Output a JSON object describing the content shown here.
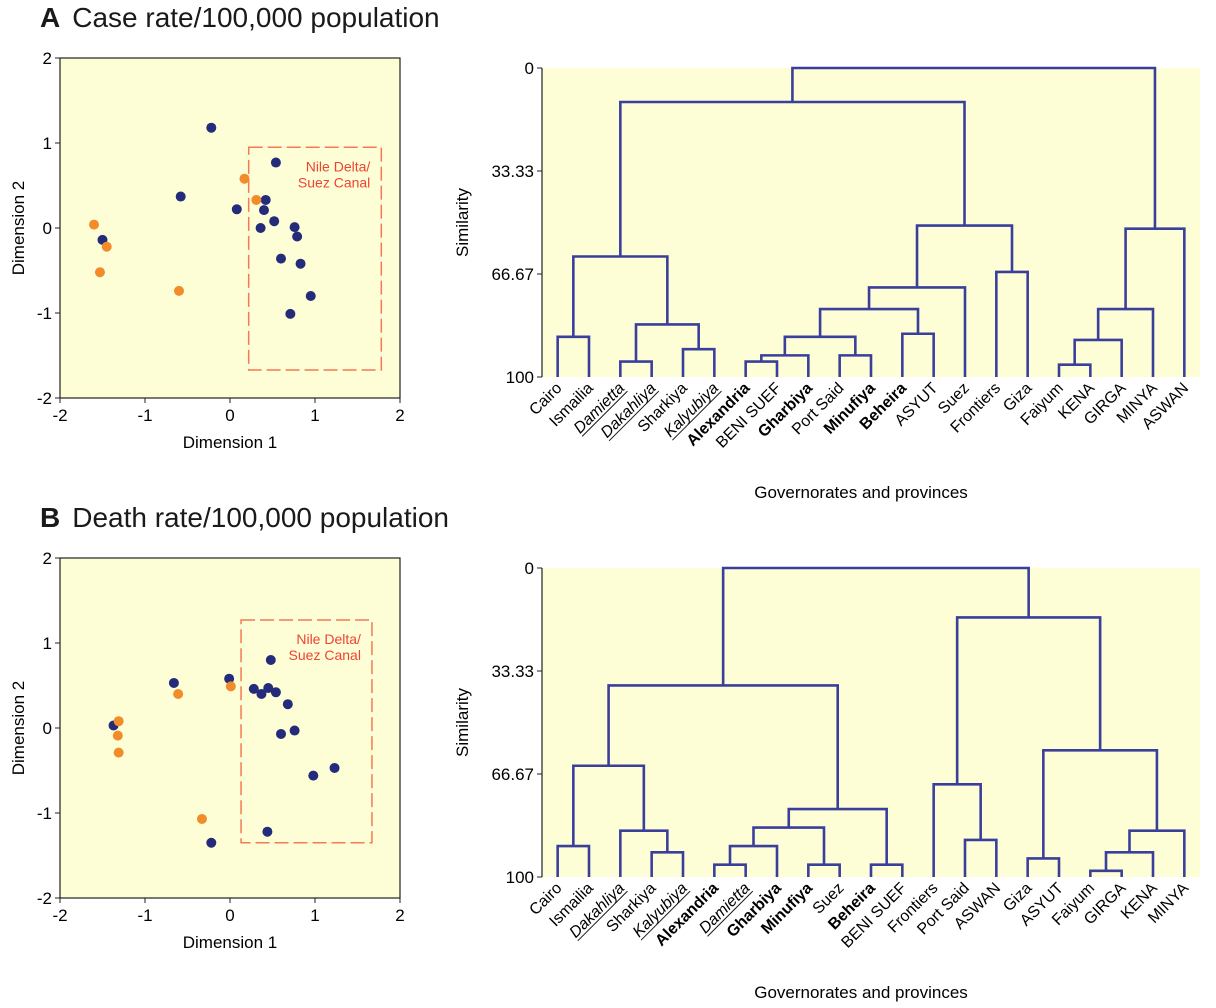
{
  "colors": {
    "plot_background": "#fdfdd6",
    "tree_line": "#3b3f9c",
    "dot_blue": "#232b7a",
    "dot_orange": "#f28c2b",
    "region_box": "#f47a55",
    "region_text": "#ee4433"
  },
  "panels": [
    {
      "letter": "A",
      "title": "Case rate/100,000 population"
    },
    {
      "letter": "B",
      "title": "Death rate/100,000 population"
    }
  ],
  "chart_data": [
    {
      "type": "scatter",
      "panel": "A",
      "xlabel": "Dimension 1",
      "ylabel": "Dimension 2",
      "xlim": [
        -2,
        2
      ],
      "ylim": [
        -2,
        2
      ],
      "xticks": [
        "-2",
        "-1",
        "0",
        "1",
        "2"
      ],
      "yticks": [
        "-2",
        "-1",
        "0",
        "1",
        "2"
      ],
      "region": {
        "label": [
          "Nile Delta/",
          "Suez Canal"
        ],
        "x": [
          0.22,
          1.78
        ],
        "y": [
          -1.67,
          0.95
        ]
      },
      "points": [
        {
          "x": -0.22,
          "y": 1.18,
          "group": "blue"
        },
        {
          "x": -0.58,
          "y": 0.37,
          "group": "blue"
        },
        {
          "x": 0.08,
          "y": 0.22,
          "group": "blue"
        },
        {
          "x": 0.54,
          "y": 0.77,
          "group": "blue"
        },
        {
          "x": 0.42,
          "y": 0.33,
          "group": "blue"
        },
        {
          "x": 0.4,
          "y": 0.21,
          "group": "blue"
        },
        {
          "x": 0.52,
          "y": 0.08,
          "group": "blue"
        },
        {
          "x": 0.36,
          "y": 0.0,
          "group": "blue"
        },
        {
          "x": 0.76,
          "y": 0.01,
          "group": "blue"
        },
        {
          "x": 0.79,
          "y": -0.1,
          "group": "blue"
        },
        {
          "x": 0.6,
          "y": -0.36,
          "group": "blue"
        },
        {
          "x": 0.83,
          "y": -0.42,
          "group": "blue"
        },
        {
          "x": 0.95,
          "y": -0.8,
          "group": "blue"
        },
        {
          "x": 0.71,
          "y": -1.01,
          "group": "blue"
        },
        {
          "x": -1.5,
          "y": -0.14,
          "group": "blue"
        },
        {
          "x": 0.17,
          "y": 0.58,
          "group": "orange"
        },
        {
          "x": 0.31,
          "y": 0.33,
          "group": "orange"
        },
        {
          "x": -1.6,
          "y": 0.04,
          "group": "orange"
        },
        {
          "x": -1.45,
          "y": -0.22,
          "group": "orange"
        },
        {
          "x": -1.53,
          "y": -0.52,
          "group": "orange"
        },
        {
          "x": -0.6,
          "y": -0.74,
          "group": "orange"
        }
      ]
    },
    {
      "type": "dendrogram",
      "panel": "A",
      "xlabel": "Governorates and provinces",
      "ylabel": "Similarity",
      "ylim": [
        0,
        100
      ],
      "yticks": [
        "0",
        "33.33",
        "66.67",
        "100"
      ],
      "leaves": [
        {
          "name": "Cairo",
          "style": "normal"
        },
        {
          "name": "Ismailia",
          "style": "normal"
        },
        {
          "name": "Damietta",
          "style": "italic-underline"
        },
        {
          "name": "Dakahliya",
          "style": "italic-underline"
        },
        {
          "name": "Sharkiya",
          "style": "normal"
        },
        {
          "name": "Kalyubiya",
          "style": "italic-underline"
        },
        {
          "name": "Alexandria",
          "style": "bold"
        },
        {
          "name": "BENI SUEF",
          "style": "normal"
        },
        {
          "name": "Gharbiya",
          "style": "bold"
        },
        {
          "name": "Port Said",
          "style": "normal"
        },
        {
          "name": "Minufiya",
          "style": "bold"
        },
        {
          "name": "Beheira",
          "style": "bold"
        },
        {
          "name": "ASYUT",
          "style": "normal"
        },
        {
          "name": "Suez",
          "style": "normal"
        },
        {
          "name": "Frontiers",
          "style": "normal"
        },
        {
          "name": "Giza",
          "style": "normal"
        },
        {
          "name": "Faiyum",
          "style": "normal"
        },
        {
          "name": "KENA",
          "style": "normal"
        },
        {
          "name": "GIRGA",
          "style": "normal"
        },
        {
          "name": "MINYA",
          "style": "normal"
        },
        {
          "name": "ASWAN",
          "style": "normal"
        }
      ],
      "merges": [
        {
          "a": "L0",
          "b": "L1",
          "s": 87
        },
        {
          "a": "L2",
          "b": "L3",
          "s": 95
        },
        {
          "a": "L4",
          "b": "L5",
          "s": 91
        },
        {
          "a": "M1",
          "b": "M2",
          "s": 83
        },
        {
          "a": "M0",
          "b": "M3",
          "s": 61
        },
        {
          "a": "L6",
          "b": "L7",
          "s": 95
        },
        {
          "a": "M5",
          "b": "L8",
          "s": 93
        },
        {
          "a": "L9",
          "b": "L10",
          "s": 93
        },
        {
          "a": "M6",
          "b": "M7",
          "s": 87
        },
        {
          "a": "L11",
          "b": "L12",
          "s": 86
        },
        {
          "a": "M8",
          "b": "M9",
          "s": 78
        },
        {
          "a": "M10",
          "b": "L13",
          "s": 71
        },
        {
          "a": "L14",
          "b": "L15",
          "s": 66
        },
        {
          "a": "M11",
          "b": "M12",
          "s": 51
        },
        {
          "a": "M4",
          "b": "M13",
          "s": 11
        },
        {
          "a": "L16",
          "b": "L17",
          "s": 96
        },
        {
          "a": "M15",
          "b": "L18",
          "s": 88
        },
        {
          "a": "M16",
          "b": "L19",
          "s": 78
        },
        {
          "a": "M17",
          "b": "L20",
          "s": 52
        },
        {
          "a": "M14",
          "b": "M18",
          "s": 0
        }
      ]
    },
    {
      "type": "scatter",
      "panel": "B",
      "xlabel": "Dimension 1",
      "ylabel": "Dimension 2",
      "xlim": [
        -2,
        2
      ],
      "ylim": [
        -2,
        2
      ],
      "xticks": [
        "-2",
        "-1",
        "0",
        "1",
        "2"
      ],
      "yticks": [
        "-2",
        "-1",
        "0",
        "1",
        "2"
      ],
      "region": {
        "label": [
          "Nile Delta/",
          "Suez Canal"
        ],
        "x": [
          0.13,
          1.67
        ],
        "y": [
          -1.35,
          1.27
        ]
      },
      "points": [
        {
          "x": -0.66,
          "y": 0.53,
          "group": "blue"
        },
        {
          "x": -0.01,
          "y": 0.58,
          "group": "blue"
        },
        {
          "x": 0.48,
          "y": 0.8,
          "group": "blue"
        },
        {
          "x": 0.28,
          "y": 0.46,
          "group": "blue"
        },
        {
          "x": 0.37,
          "y": 0.4,
          "group": "blue"
        },
        {
          "x": 0.45,
          "y": 0.47,
          "group": "blue"
        },
        {
          "x": 0.54,
          "y": 0.42,
          "group": "blue"
        },
        {
          "x": 0.68,
          "y": 0.28,
          "group": "blue"
        },
        {
          "x": 0.76,
          "y": -0.03,
          "group": "blue"
        },
        {
          "x": 0.6,
          "y": -0.07,
          "group": "blue"
        },
        {
          "x": 0.98,
          "y": -0.56,
          "group": "blue"
        },
        {
          "x": 1.23,
          "y": -0.47,
          "group": "blue"
        },
        {
          "x": 0.44,
          "y": -1.22,
          "group": "blue"
        },
        {
          "x": -1.37,
          "y": 0.03,
          "group": "blue"
        },
        {
          "x": -0.22,
          "y": -1.35,
          "group": "blue"
        },
        {
          "x": -0.61,
          "y": 0.4,
          "group": "orange"
        },
        {
          "x": 0.01,
          "y": 0.49,
          "group": "orange"
        },
        {
          "x": -1.31,
          "y": 0.08,
          "group": "orange"
        },
        {
          "x": -1.32,
          "y": -0.09,
          "group": "orange"
        },
        {
          "x": -1.31,
          "y": -0.29,
          "group": "orange"
        },
        {
          "x": -0.33,
          "y": -1.07,
          "group": "orange"
        }
      ]
    },
    {
      "type": "dendrogram",
      "panel": "B",
      "xlabel": "Governorates and provinces",
      "ylabel": "Similarity",
      "ylim": [
        0,
        100
      ],
      "yticks": [
        "0",
        "33.33",
        "66.67",
        "100"
      ],
      "leaves": [
        {
          "name": "Cairo",
          "style": "normal"
        },
        {
          "name": "Ismailia",
          "style": "normal"
        },
        {
          "name": "Dakahliya",
          "style": "italic-underline"
        },
        {
          "name": "Sharkiya",
          "style": "normal"
        },
        {
          "name": "Kalyubiya",
          "style": "italic-underline"
        },
        {
          "name": "Alexandria",
          "style": "bold"
        },
        {
          "name": "Damietta",
          "style": "italic-underline"
        },
        {
          "name": "Gharbiya",
          "style": "bold"
        },
        {
          "name": "Minufiya",
          "style": "bold"
        },
        {
          "name": "Suez",
          "style": "normal"
        },
        {
          "name": "Beheira",
          "style": "bold"
        },
        {
          "name": "BENI SUEF",
          "style": "normal"
        },
        {
          "name": "Frontiers",
          "style": "normal"
        },
        {
          "name": "Port Said",
          "style": "normal"
        },
        {
          "name": "ASWAN",
          "style": "normal"
        },
        {
          "name": "Giza",
          "style": "normal"
        },
        {
          "name": "ASYUT",
          "style": "normal"
        },
        {
          "name": "Faiyum",
          "style": "normal"
        },
        {
          "name": "GIRGA",
          "style": "normal"
        },
        {
          "name": "KENA",
          "style": "normal"
        },
        {
          "name": "MINYA",
          "style": "normal"
        }
      ],
      "merges": [
        {
          "a": "L0",
          "b": "L1",
          "s": 90
        },
        {
          "a": "L3",
          "b": "L4",
          "s": 92
        },
        {
          "a": "L2",
          "b": "M1",
          "s": 85
        },
        {
          "a": "M0",
          "b": "M2",
          "s": 64
        },
        {
          "a": "L5",
          "b": "L6",
          "s": 96
        },
        {
          "a": "M4",
          "b": "L7",
          "s": 90
        },
        {
          "a": "L8",
          "b": "L9",
          "s": 96
        },
        {
          "a": "M5",
          "b": "M6",
          "s": 84
        },
        {
          "a": "L10",
          "b": "L11",
          "s": 96
        },
        {
          "a": "M7",
          "b": "M8",
          "s": 78
        },
        {
          "a": "M3",
          "b": "M9",
          "s": 38
        },
        {
          "a": "L13",
          "b": "L14",
          "s": 88
        },
        {
          "a": "L12",
          "b": "M11",
          "s": 70
        },
        {
          "a": "L15",
          "b": "L16",
          "s": 94
        },
        {
          "a": "L17",
          "b": "L18",
          "s": 98
        },
        {
          "a": "M14",
          "b": "L19",
          "s": 92
        },
        {
          "a": "M15",
          "b": "L20",
          "s": 85
        },
        {
          "a": "M13",
          "b": "M16",
          "s": 59
        },
        {
          "a": "M12",
          "b": "M17",
          "s": 16
        },
        {
          "a": "M10",
          "b": "M18",
          "s": 0
        }
      ]
    }
  ]
}
